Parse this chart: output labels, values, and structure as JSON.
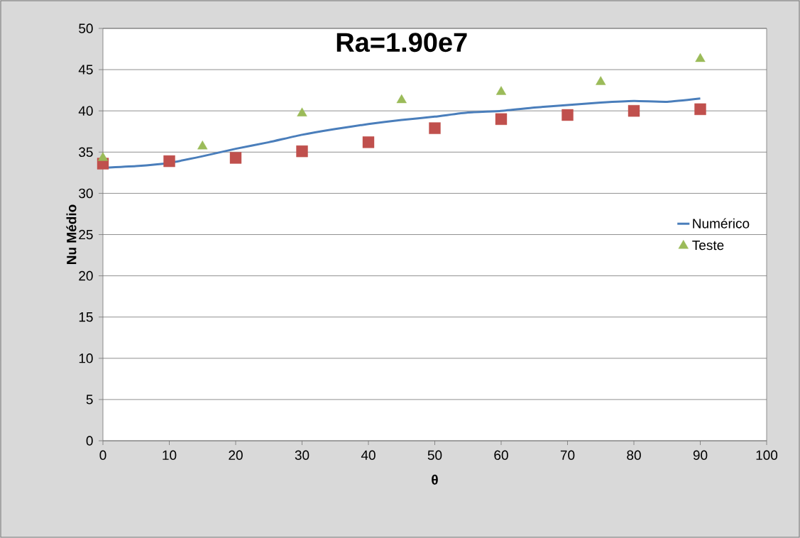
{
  "chart_data": {
    "type": "line",
    "title": "Ra=1.90e7",
    "xlabel": "θ",
    "ylabel": "Nu Médio",
    "xlim": [
      0,
      100
    ],
    "xticks": [
      0,
      10,
      20,
      30,
      40,
      50,
      60,
      70,
      80,
      90,
      100
    ],
    "ylim": [
      0,
      50
    ],
    "yticks": [
      0,
      5,
      10,
      15,
      20,
      25,
      30,
      35,
      40,
      45,
      50
    ],
    "grid": "y",
    "legend": "right",
    "series": [
      {
        "name": "Numérico",
        "color": "#4a7ebb",
        "marker": "none",
        "line_style": "solid",
        "x": [
          0,
          5,
          10,
          15,
          20,
          25,
          30,
          35,
          40,
          45,
          50,
          55,
          60,
          65,
          70,
          75,
          80,
          85,
          90
        ],
        "values": [
          33.1,
          33.3,
          33.7,
          34.5,
          35.4,
          36.2,
          37.1,
          37.8,
          38.4,
          38.9,
          39.3,
          39.8,
          40.0,
          40.4,
          40.7,
          41.0,
          41.2,
          41.1,
          41.5
        ]
      },
      {
        "type": "scatter",
        "color": "#c0504d",
        "marker": "square",
        "x": [
          0,
          10,
          20,
          30,
          40,
          50,
          60,
          70,
          80,
          90
        ],
        "values": [
          33.6,
          33.9,
          34.3,
          35.1,
          36.2,
          37.9,
          39.0,
          39.5,
          40.0,
          40.2
        ]
      },
      {
        "name": "Teste",
        "type": "scatter",
        "color": "#9bbb59",
        "marker": "triangle",
        "x": [
          0,
          15,
          30,
          45,
          60,
          75,
          90
        ],
        "values": [
          34.3,
          35.7,
          39.7,
          41.3,
          42.3,
          43.5,
          46.3
        ]
      }
    ]
  }
}
